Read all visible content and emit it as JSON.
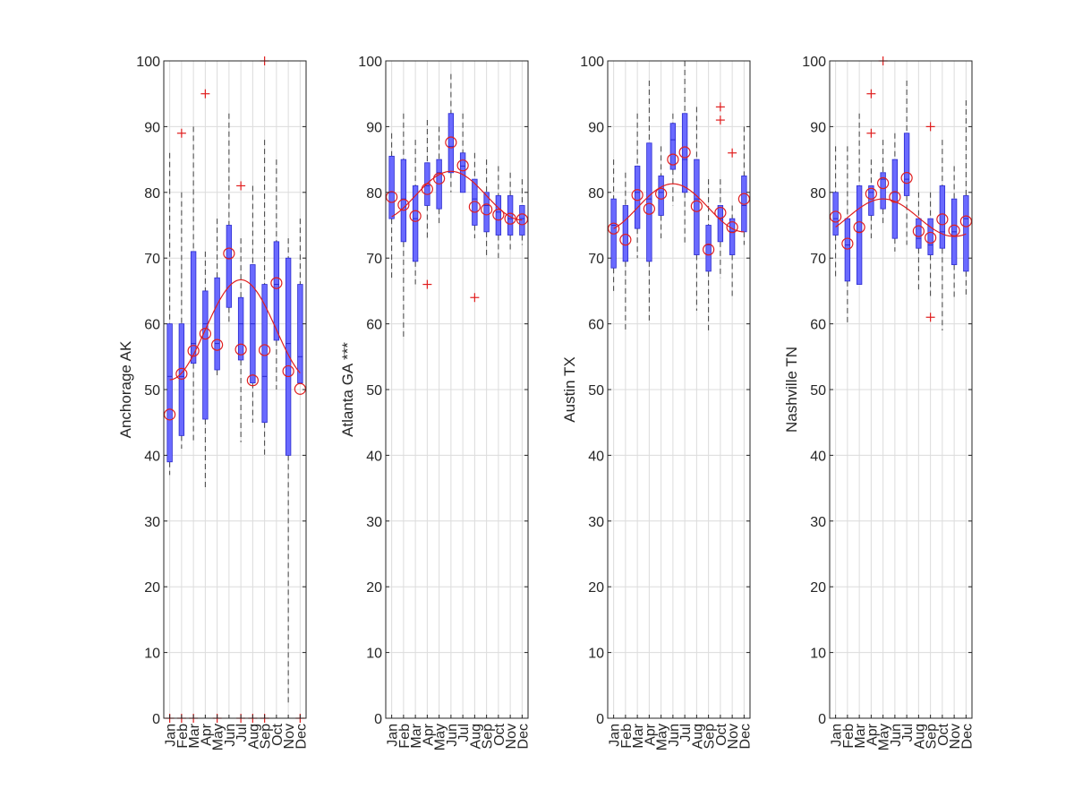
{
  "chart_data": [
    {
      "type": "box",
      "ylabel": "Anchorage AK",
      "ylim": [
        0,
        100
      ],
      "yticks": [
        0,
        10,
        20,
        30,
        40,
        50,
        60,
        70,
        80,
        90,
        100
      ],
      "categories": [
        "Jan",
        "Feb",
        "Mar",
        "Apr",
        "May",
        "Jun",
        "Jul",
        "Aug",
        "Sep",
        "Oct",
        "Nov",
        "Dec"
      ],
      "grid": true,
      "boxes": [
        {
          "whisker_low": 37,
          "q1": 39,
          "median": 52,
          "q3": 60,
          "whisker_high": 86,
          "mean": 46.2,
          "outliers": [
            0
          ]
        },
        {
          "whisker_low": 41,
          "q1": 43,
          "median": 52,
          "q3": 60,
          "whisker_high": 80,
          "mean": 52.4,
          "outliers": [
            89,
            0
          ]
        },
        {
          "whisker_low": 42,
          "q1": 54,
          "median": 57,
          "q3": 71,
          "whisker_high": 90,
          "mean": 55.9,
          "outliers": [
            0
          ]
        },
        {
          "whisker_low": 35,
          "q1": 45.5,
          "median": 60,
          "q3": 65,
          "whisker_high": 71,
          "mean": 58.5,
          "outliers": [
            95
          ]
        },
        {
          "whisker_low": 52,
          "q1": 53,
          "median": 57,
          "q3": 67,
          "whisker_high": 76,
          "mean": 56.8,
          "outliers": [
            0
          ]
        },
        {
          "whisker_low": 60,
          "q1": 62.5,
          "median": 70,
          "q3": 75,
          "whisker_high": 92,
          "mean": 70.7,
          "outliers": []
        },
        {
          "whisker_low": 42,
          "q1": 54.5,
          "median": 60,
          "q3": 64,
          "whisker_high": 73,
          "mean": 56.1,
          "outliers": [
            81,
            0
          ]
        },
        {
          "whisker_low": 45,
          "q1": 51,
          "median": 60,
          "q3": 69,
          "whisker_high": 81,
          "mean": 51.4,
          "outliers": [
            0
          ]
        },
        {
          "whisker_low": 40,
          "q1": 45,
          "median": 52,
          "q3": 66,
          "whisker_high": 88,
          "mean": 56,
          "outliers": [
            100,
            0
          ]
        },
        {
          "whisker_low": 50,
          "q1": 57.5,
          "median": 66,
          "q3": 72.5,
          "whisker_high": 85,
          "mean": 66.2,
          "outliers": []
        },
        {
          "whisker_low": 2,
          "q1": 40,
          "median": 57,
          "q3": 70,
          "whisker_high": 73,
          "mean": 52.8,
          "outliers": []
        },
        {
          "whisker_low": 51,
          "q1": 51,
          "median": 55,
          "q3": 66,
          "whisker_high": 76,
          "mean": 50.1,
          "outliers": [
            0
          ]
        }
      ],
      "fit_curve": {
        "low": 51.5,
        "high": 66.7,
        "peak_month": 7
      }
    },
    {
      "type": "box",
      "ylabel": "Atlanta GA ***",
      "ylim": [
        0,
        100
      ],
      "yticks": [
        0,
        10,
        20,
        30,
        40,
        50,
        60,
        70,
        80,
        90,
        100
      ],
      "categories": [
        "Jan",
        "Feb",
        "Mar",
        "Apr",
        "May",
        "Jun",
        "Jul",
        "Aug",
        "Sep",
        "Oct",
        "Nov",
        "Dec"
      ],
      "grid": true,
      "boxes": [
        {
          "whisker_low": 67,
          "q1": 76,
          "median": 80,
          "q3": 85.5,
          "whisker_high": 89,
          "mean": 79.3,
          "outliers": []
        },
        {
          "whisker_low": 58,
          "q1": 72.5,
          "median": 79,
          "q3": 85,
          "whisker_high": 92,
          "mean": 78.1,
          "outliers": []
        },
        {
          "whisker_low": 66,
          "q1": 69.5,
          "median": 76,
          "q3": 81,
          "whisker_high": 88,
          "mean": 76.4,
          "outliers": []
        },
        {
          "whisker_low": 73,
          "q1": 78,
          "median": 81,
          "q3": 84.5,
          "whisker_high": 91,
          "mean": 80.5,
          "outliers": [
            66
          ]
        },
        {
          "whisker_low": 75,
          "q1": 77.5,
          "median": 83,
          "q3": 85,
          "whisker_high": 90,
          "mean": 82.1,
          "outliers": []
        },
        {
          "whisker_low": 80,
          "q1": 83,
          "median": 87,
          "q3": 92,
          "whisker_high": 98,
          "mean": 87.6,
          "outliers": []
        },
        {
          "whisker_low": 80,
          "q1": 80,
          "median": 84,
          "q3": 86,
          "whisker_high": 92,
          "mean": 84.1,
          "outliers": []
        },
        {
          "whisker_low": 73,
          "q1": 75,
          "median": 79,
          "q3": 82,
          "whisker_high": 86,
          "mean": 77.8,
          "outliers": [
            64
          ]
        },
        {
          "whisker_low": 70,
          "q1": 74,
          "median": 78,
          "q3": 80,
          "whisker_high": 85,
          "mean": 77.4,
          "outliers": []
        },
        {
          "whisker_low": 70,
          "q1": 73.5,
          "median": 77,
          "q3": 79.5,
          "whisker_high": 84,
          "mean": 76.6,
          "outliers": []
        },
        {
          "whisker_low": 71,
          "q1": 73.5,
          "median": 76,
          "q3": 79.5,
          "whisker_high": 83,
          "mean": 76,
          "outliers": []
        },
        {
          "whisker_low": 72,
          "q1": 73.5,
          "median": 76,
          "q3": 78,
          "whisker_high": 82,
          "mean": 75.9,
          "outliers": []
        }
      ],
      "fit_curve": {
        "low": 75.8,
        "high": 83.2,
        "peak_month": 6
      }
    },
    {
      "type": "box",
      "ylabel": "Austin TX",
      "ylim": [
        0,
        100
      ],
      "yticks": [
        0,
        10,
        20,
        30,
        40,
        50,
        60,
        70,
        80,
        90,
        100
      ],
      "categories": [
        "Jan",
        "Feb",
        "Mar",
        "Apr",
        "May",
        "Jun",
        "Jul",
        "Aug",
        "Sep",
        "Oct",
        "Nov",
        "Dec"
      ],
      "grid": true,
      "boxes": [
        {
          "whisker_low": 65,
          "q1": 68.5,
          "median": 75,
          "q3": 79,
          "whisker_high": 85,
          "mean": 74.5,
          "outliers": []
        },
        {
          "whisker_low": 59,
          "q1": 69.5,
          "median": 72,
          "q3": 78,
          "whisker_high": 83,
          "mean": 72.8,
          "outliers": []
        },
        {
          "whisker_low": 70,
          "q1": 74.5,
          "median": 80,
          "q3": 84,
          "whisker_high": 92,
          "mean": 79.6,
          "outliers": []
        },
        {
          "whisker_low": 60,
          "q1": 69.5,
          "median": 79,
          "q3": 87.5,
          "whisker_high": 97,
          "mean": 77.5,
          "outliers": []
        },
        {
          "whisker_low": 73,
          "q1": 76.5,
          "median": 80,
          "q3": 82.5,
          "whisker_high": 87,
          "mean": 79.8,
          "outliers": []
        },
        {
          "whisker_low": 78,
          "q1": 83.5,
          "median": 88,
          "q3": 90.5,
          "whisker_high": 92,
          "mean": 85,
          "outliers": []
        },
        {
          "whisker_low": 72,
          "q1": 80,
          "median": 85,
          "q3": 92,
          "whisker_high": 100,
          "mean": 86.1,
          "outliers": []
        },
        {
          "whisker_low": 62,
          "q1": 70.5,
          "median": 79,
          "q3": 85,
          "whisker_high": 93,
          "mean": 77.9,
          "outliers": []
        },
        {
          "whisker_low": 59,
          "q1": 68,
          "median": 72,
          "q3": 75,
          "whisker_high": 82,
          "mean": 71.3,
          "outliers": []
        },
        {
          "whisker_low": 67,
          "q1": 72.5,
          "median": 76,
          "q3": 78,
          "whisker_high": 82,
          "mean": 76.9,
          "outliers": [
            93,
            91
          ]
        },
        {
          "whisker_low": 64,
          "q1": 70.5,
          "median": 74,
          "q3": 76,
          "whisker_high": 78,
          "mean": 74.7,
          "outliers": [
            86
          ]
        },
        {
          "whisker_low": 72,
          "q1": 74,
          "median": 78,
          "q3": 82.5,
          "whisker_high": 90,
          "mean": 79,
          "outliers": []
        }
      ],
      "fit_curve": {
        "low": 74,
        "high": 81.3,
        "peak_month": 6
      }
    },
    {
      "type": "box",
      "ylabel": "Nashville TN",
      "ylim": [
        0,
        100
      ],
      "yticks": [
        0,
        10,
        20,
        30,
        40,
        50,
        60,
        70,
        80,
        90,
        100
      ],
      "categories": [
        "Jan",
        "Feb",
        "Mar",
        "Apr",
        "May",
        "Jun",
        "Jul",
        "Aug",
        "Sep",
        "Oct",
        "Nov",
        "Dec"
      ],
      "grid": true,
      "boxes": [
        {
          "whisker_low": 67,
          "q1": 73.5,
          "median": 76,
          "q3": 80,
          "whisker_high": 87,
          "mean": 76.3,
          "outliers": []
        },
        {
          "whisker_low": 60,
          "q1": 66.5,
          "median": 72,
          "q3": 76,
          "whisker_high": 87,
          "mean": 72.2,
          "outliers": []
        },
        {
          "whisker_low": 66,
          "q1": 66,
          "median": 74,
          "q3": 81,
          "whisker_high": 92,
          "mean": 74.7,
          "outliers": []
        },
        {
          "whisker_low": 73,
          "q1": 76.5,
          "median": 80,
          "q3": 81,
          "whisker_high": 85,
          "mean": 79.8,
          "outliers": [
            95,
            89
          ]
        },
        {
          "whisker_low": 75,
          "q1": 77.5,
          "median": 82,
          "q3": 83,
          "whisker_high": 88,
          "mean": 81.4,
          "outliers": [
            100
          ]
        },
        {
          "whisker_low": 71,
          "q1": 73,
          "median": 80,
          "q3": 85,
          "whisker_high": 89,
          "mean": 79.3,
          "outliers": []
        },
        {
          "whisker_low": 72,
          "q1": 79.5,
          "median": 82,
          "q3": 89,
          "whisker_high": 97,
          "mean": 82.2,
          "outliers": []
        },
        {
          "whisker_low": 65,
          "q1": 71.5,
          "median": 73,
          "q3": 76,
          "whisker_high": 80,
          "mean": 74.1,
          "outliers": []
        },
        {
          "whisker_low": 64,
          "q1": 70.5,
          "median": 72,
          "q3": 76,
          "whisker_high": 80,
          "mean": 73.1,
          "outliers": [
            90,
            61
          ]
        },
        {
          "whisker_low": 59,
          "q1": 71.5,
          "median": 74,
          "q3": 81,
          "whisker_high": 88,
          "mean": 75.9,
          "outliers": []
        },
        {
          "whisker_low": 64,
          "q1": 69,
          "median": 74,
          "q3": 79,
          "whisker_high": 84,
          "mean": 74.2,
          "outliers": []
        },
        {
          "whisker_low": 64,
          "q1": 68,
          "median": 76,
          "q3": 79.5,
          "whisker_high": 94,
          "mean": 75.6,
          "outliers": []
        }
      ],
      "fit_curve": {
        "low": 73.3,
        "high": 79,
        "peak_month": 5
      }
    }
  ],
  "colors": {
    "box": "#6a6aff",
    "box_edge": "#2b2bcf",
    "whisker": "#404040",
    "mean_marker": "#e01e1e",
    "outlier": "#e01e1e",
    "fit_line": "#e01e1e",
    "grid": "#dcdcdc",
    "axis": "#262626"
  }
}
